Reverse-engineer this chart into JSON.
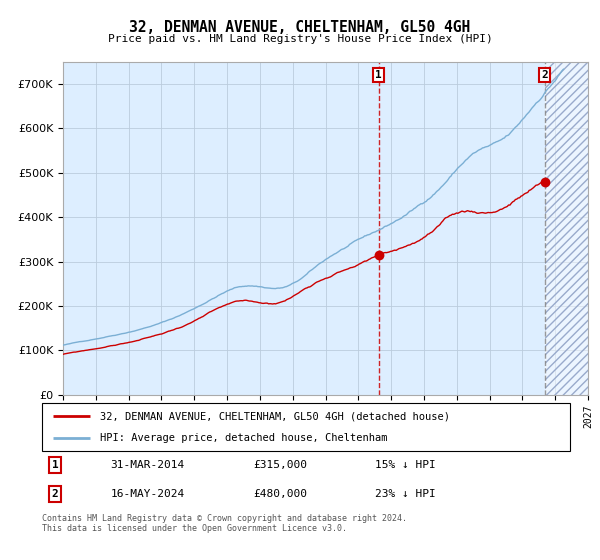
{
  "title": "32, DENMAN AVENUE, CHELTENHAM, GL50 4GH",
  "subtitle": "Price paid vs. HM Land Registry's House Price Index (HPI)",
  "hpi_label": "HPI: Average price, detached house, Cheltenham",
  "property_label": "32, DENMAN AVENUE, CHELTENHAM, GL50 4GH (detached house)",
  "sale1_date": "31-MAR-2014",
  "sale1_price": 315000,
  "sale1_text": "15% ↓ HPI",
  "sale2_date": "16-MAY-2024",
  "sale2_price": 480000,
  "sale2_text": "23% ↓ HPI",
  "sale1_year": 2014.25,
  "sale2_year": 2024.37,
  "start_year": 1995,
  "end_year": 2027,
  "ylim": [
    0,
    750000
  ],
  "hpi_color": "#7bafd4",
  "property_color": "#cc0000",
  "background_color": "#ddeeff",
  "hatch_color": "#aabbcc",
  "grid_color": "#bbccdd",
  "footnote": "Contains HM Land Registry data © Crown copyright and database right 2024.\nThis data is licensed under the Open Government Licence v3.0."
}
